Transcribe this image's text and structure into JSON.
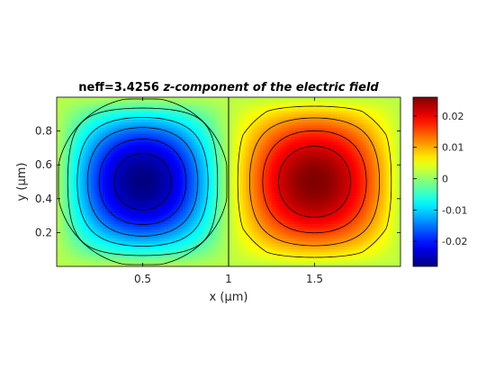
{
  "chart_data": {
    "type": "heatmap",
    "title_bold": "neff=3.4256",
    "title_italic": " z-component of the electric field",
    "xlabel": "x (µm)",
    "ylabel": "y (µm)",
    "xlim": [
      0,
      2
    ],
    "ylim": [
      0,
      1
    ],
    "xticks": [
      0.5,
      1,
      1.5
    ],
    "xtick_labels": [
      "0.5",
      "1",
      "1.5"
    ],
    "yticks": [
      0.2,
      0.4,
      0.6,
      0.8
    ],
    "ytick_labels": [
      "0.2",
      "0.4",
      "0.6",
      "0.8"
    ],
    "field": {
      "lobes": [
        {
          "center": [
            0.5,
            0.5
          ],
          "value": -0.028
        },
        {
          "center": [
            1.5,
            0.5
          ],
          "value": 0.026
        }
      ],
      "boundary_value": 0.002,
      "interface_x": 1
    },
    "contour_levels": [
      -0.024,
      -0.019,
      -0.014,
      -0.009,
      -0.004,
      0.001,
      0.006,
      0.011,
      0.016,
      0.021
    ],
    "colorbar": {
      "colormap": "jet",
      "range": [
        -0.028,
        0.026
      ],
      "ticks": [
        -0.02,
        -0.01,
        0,
        0.01,
        0.02
      ],
      "tick_labels": [
        "-0.02",
        "-0.01",
        "0",
        "0.01",
        "0.02"
      ]
    },
    "grid": false,
    "legend": "none"
  }
}
